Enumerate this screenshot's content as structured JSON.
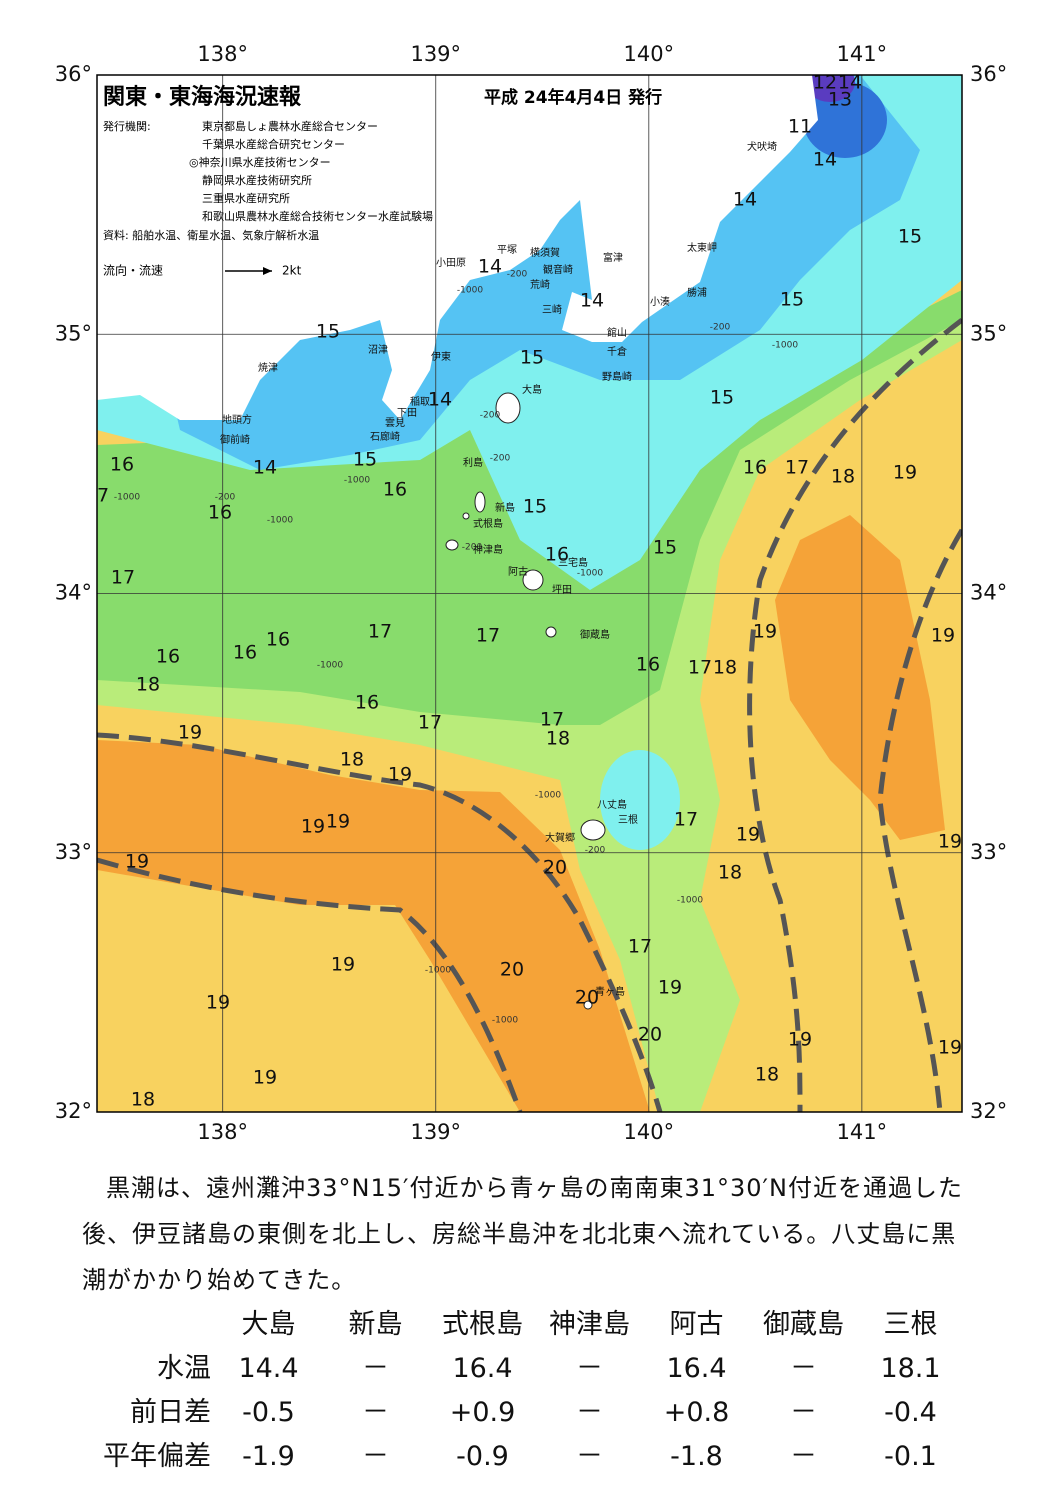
{
  "map": {
    "title": "関東・東海海況速報",
    "date": "平成 24年4月4日 発行",
    "issuer_label": "発行機関:",
    "issuers": [
      "東京都島しょ農林水産総合センター",
      "千葉県水産総合研究センター",
      "◎神奈川県水産技術センター",
      "静岡県水産技術研究所",
      "三重県水産研究所",
      "和歌山県農林水産総合技術センター水産試験場"
    ],
    "source": "資料: 船舶水温、衛星水温、気象庁解析水温",
    "legend": "流向・流速",
    "legend_scale": "2kt",
    "xlim": [
      137.41,
      141.47
    ],
    "ylim": [
      32,
      36
    ],
    "xticks": [
      {
        "value": 138,
        "label": "138°"
      },
      {
        "value": 139,
        "label": "139°"
      },
      {
        "value": 140,
        "label": "140°"
      },
      {
        "value": 141,
        "label": "141°"
      }
    ],
    "yticks": [
      {
        "value": 32,
        "label": "32°"
      },
      {
        "value": 33,
        "label": "33°"
      },
      {
        "value": 34,
        "label": "34°"
      },
      {
        "value": 35,
        "label": "35°"
      },
      {
        "value": 36,
        "label": "36°"
      }
    ],
    "isotherms": [
      12,
      14,
      13,
      11,
      14,
      14,
      15,
      15,
      14,
      14,
      15,
      15,
      14,
      15,
      16,
      14,
      15,
      16,
      16,
      17,
      18,
      19,
      7,
      16,
      15,
      16,
      15,
      17,
      16,
      17,
      17,
      16,
      16,
      19,
      19,
      18,
      16,
      17,
      18,
      16,
      17,
      17,
      18,
      19,
      18,
      19,
      17,
      19,
      19,
      19,
      19,
      19,
      20,
      18,
      17,
      19,
      20,
      20,
      19,
      19,
      20,
      19,
      19,
      19,
      18,
      18
    ],
    "depths": [
      -200,
      -1000,
      -200,
      -1000,
      -200,
      -200,
      -1000,
      -200,
      -1000,
      -1000,
      -200,
      -1000,
      -1000,
      -1000,
      -200,
      -1000,
      -1000,
      -1000
    ],
    "places": [
      "犬吠埼",
      "太東岬",
      "富津",
      "横須賀",
      "平塚",
      "小田原",
      "観音崎",
      "荒崎",
      "三崎",
      "勝浦",
      "小湊",
      "館山",
      "千倉",
      "野島崎",
      "沼津",
      "伊東",
      "焼津",
      "大島",
      "稲取",
      "下田",
      "雲見",
      "石廊崎",
      "地頭方",
      "御前崎",
      "利島",
      "新島",
      "式根島",
      "神津島",
      "三宅島",
      "阿古",
      "坪田",
      "御蔵島",
      "八丈島",
      "三根",
      "大賀郷",
      "青ヶ島"
    ]
  },
  "summary": "黒潮は、遠州灘沖33°N15′付近から青ヶ島の南南東31°30′N付近を通過した後、伊豆諸島の東側を北上し、房総半島沖を北北東へ流れている。八丈島に黒潮がかかり始めてきた。",
  "table": {
    "columns": [
      "大島",
      "新島",
      "式根島",
      "神津島",
      "阿古",
      "御蔵島",
      "三根"
    ],
    "rows": [
      {
        "label": "水温",
        "values": [
          "14.4",
          "－",
          "16.4",
          "－",
          "16.4",
          "－",
          "18.1"
        ]
      },
      {
        "label": "前日差",
        "values": [
          "-0.5",
          "－",
          "+0.9",
          "－",
          "+0.8",
          "－",
          "-0.4"
        ]
      },
      {
        "label": "平年偏差",
        "values": [
          "-1.9",
          "－",
          "-0.9",
          "－",
          "-1.8",
          "－",
          "-0.1"
        ]
      }
    ]
  }
}
